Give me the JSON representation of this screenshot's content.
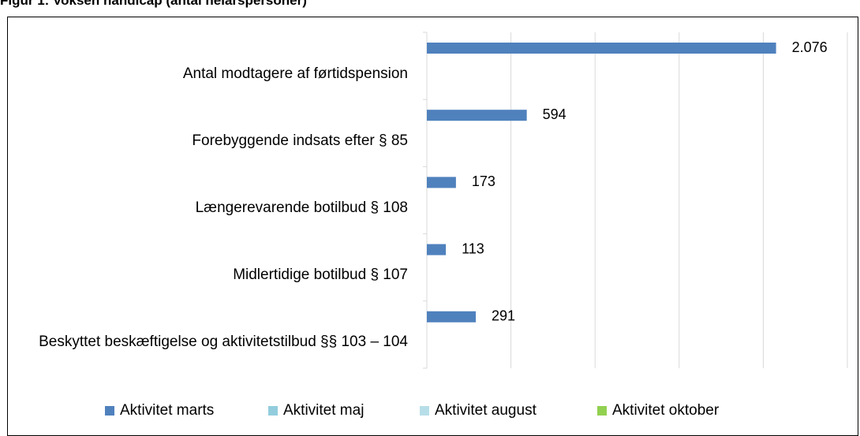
{
  "chart_data": {
    "type": "barh",
    "title": "Figur 1: Voksen handicap (antal helårspersoner)",
    "categories": [
      "Antal modtagere af førtidspension",
      "Forebyggende indsats efter § 85",
      "Længerevarende botilbud § 108",
      "Midlertidige botilbud § 107",
      "Beskyttet beskæftigelse og aktivitetstilbud §§ 103 – 104"
    ],
    "series": [
      {
        "name": "Aktivitet marts",
        "color": "#4f81bd",
        "values": [
          2076,
          594,
          173,
          113,
          291
        ],
        "value_labels": [
          "2.076",
          "594",
          "173",
          "113",
          "291"
        ]
      },
      {
        "name": "Aktivitet maj",
        "color": "#93cddd",
        "values": [
          null,
          null,
          null,
          null,
          null
        ]
      },
      {
        "name": "Aktivitet august",
        "color": "#b7dee8",
        "values": [
          null,
          null,
          null,
          null,
          null
        ]
      },
      {
        "name": "Aktivitet oktober",
        "color": "#92d050",
        "values": [
          null,
          null,
          null,
          null,
          null
        ]
      }
    ],
    "xlim": [
      0,
      2500
    ],
    "xticks": [
      0,
      500,
      1000,
      1500,
      2000,
      2500
    ],
    "grid": true,
    "legend": "bottom"
  }
}
